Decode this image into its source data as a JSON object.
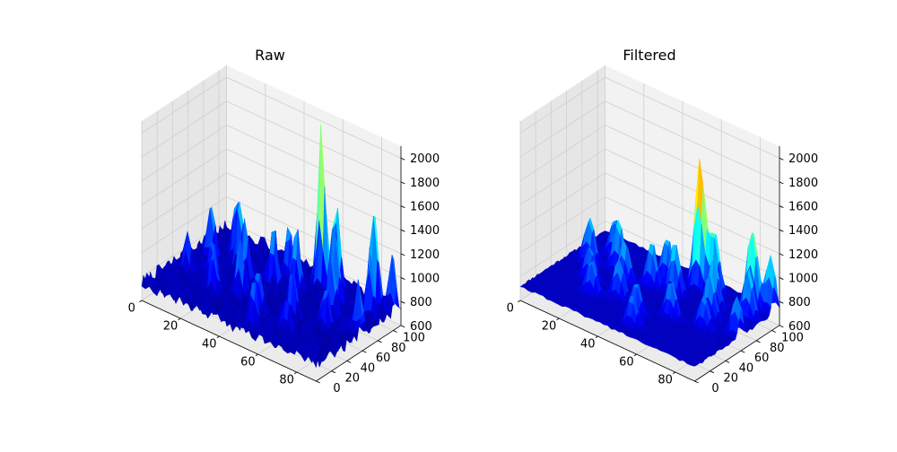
{
  "chart_data": [
    {
      "type": "surface",
      "title": "Raw",
      "x": {
        "ticks": [
          "0",
          "20",
          "40",
          "60",
          "80"
        ]
      },
      "y": {
        "ticks": [
          "0",
          "20",
          "40",
          "60",
          "80",
          "100"
        ]
      },
      "z": {
        "ticks": [
          "600",
          "800",
          "1000",
          "1200",
          "1400",
          "1600",
          "1800",
          "2000"
        ],
        "range": [
          600,
          2100
        ]
      },
      "colormap": "jet",
      "grid": true,
      "baseline_z": 750,
      "peak_z_max": 2150,
      "peaks": [
        {
          "x": 55,
          "y": 95,
          "z": 2150
        },
        {
          "x": 80,
          "y": 100,
          "z": 1600
        },
        {
          "x": 62,
          "y": 96,
          "z": 1550
        },
        {
          "x": 88,
          "y": 104,
          "z": 1250
        },
        {
          "x": 10,
          "y": 65,
          "z": 1280
        },
        {
          "x": 22,
          "y": 72,
          "z": 1350
        },
        {
          "x": 30,
          "y": 60,
          "z": 1280
        },
        {
          "x": 40,
          "y": 70,
          "z": 1250
        },
        {
          "x": 50,
          "y": 75,
          "z": 1300
        },
        {
          "x": 68,
          "y": 80,
          "z": 1350
        },
        {
          "x": 72,
          "y": 65,
          "z": 1300
        },
        {
          "x": 84,
          "y": 85,
          "z": 1250
        },
        {
          "x": 35,
          "y": 40,
          "z": 1200
        },
        {
          "x": 48,
          "y": 30,
          "z": 1150
        },
        {
          "x": 60,
          "y": 45,
          "z": 1180
        },
        {
          "x": 18,
          "y": 45,
          "z": 1100
        },
        {
          "x": 25,
          "y": 30,
          "z": 1150
        },
        {
          "x": 52,
          "y": 15,
          "z": 1100
        },
        {
          "x": 75,
          "y": 50,
          "z": 1120
        },
        {
          "x": 88,
          "y": 60,
          "z": 1150
        },
        {
          "x": 42,
          "y": 85,
          "z": 1250
        },
        {
          "x": 15,
          "y": 85,
          "z": 1200
        },
        {
          "x": 65,
          "y": 25,
          "z": 1050
        },
        {
          "x": 8,
          "y": 40,
          "z": 1050
        }
      ]
    },
    {
      "type": "surface",
      "title": "Filtered",
      "x": {
        "ticks": [
          "0",
          "20",
          "40",
          "60",
          "80"
        ]
      },
      "y": {
        "ticks": [
          "0",
          "20",
          "40",
          "60",
          "80",
          "100"
        ]
      },
      "z": {
        "ticks": [
          "600",
          "800",
          "1000",
          "1200",
          "1400",
          "1600",
          "1800",
          "2000"
        ],
        "range": [
          600,
          2100
        ]
      },
      "colormap": "jet",
      "grid": true,
      "baseline_z": 720,
      "peak_z_max": 1800,
      "peaks": [
        {
          "x": 55,
          "y": 95,
          "z": 1800
        },
        {
          "x": 80,
          "y": 100,
          "z": 1400
        },
        {
          "x": 62,
          "y": 96,
          "z": 1250
        },
        {
          "x": 88,
          "y": 104,
          "z": 1200
        },
        {
          "x": 10,
          "y": 65,
          "z": 1100
        },
        {
          "x": 22,
          "y": 72,
          "z": 1150
        },
        {
          "x": 30,
          "y": 60,
          "z": 1100
        },
        {
          "x": 40,
          "y": 70,
          "z": 1100
        },
        {
          "x": 50,
          "y": 75,
          "z": 1150
        },
        {
          "x": 68,
          "y": 80,
          "z": 1150
        },
        {
          "x": 72,
          "y": 65,
          "z": 1120
        },
        {
          "x": 84,
          "y": 85,
          "z": 1150
        },
        {
          "x": 35,
          "y": 40,
          "z": 1050
        },
        {
          "x": 48,
          "y": 30,
          "z": 1000
        },
        {
          "x": 60,
          "y": 45,
          "z": 1050
        },
        {
          "x": 18,
          "y": 45,
          "z": 1000
        },
        {
          "x": 25,
          "y": 30,
          "z": 1000
        },
        {
          "x": 52,
          "y": 15,
          "z": 980
        },
        {
          "x": 75,
          "y": 50,
          "z": 1000
        },
        {
          "x": 88,
          "y": 60,
          "z": 1050
        },
        {
          "x": 42,
          "y": 85,
          "z": 1100
        },
        {
          "x": 15,
          "y": 85,
          "z": 1050
        }
      ]
    }
  ]
}
